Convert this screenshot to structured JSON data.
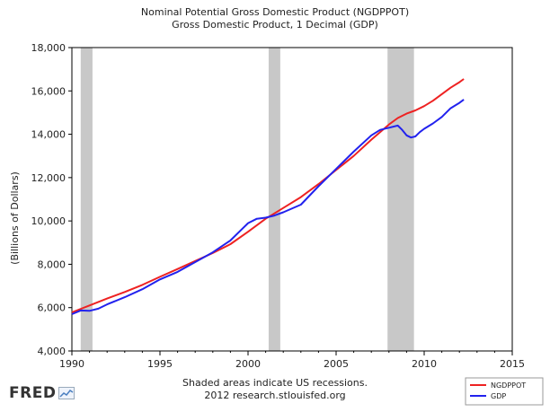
{
  "titles": {
    "line1": "Nominal Potential Gross Domestic Product (NGDPPOT)",
    "line2": "Gross Domestic Product, 1 Decimal (GDP)"
  },
  "footer": {
    "line1": "Shaded areas indicate US recessions.",
    "line2": "2012 research.stlouisfed.org"
  },
  "logo": {
    "text": "FRED"
  },
  "colors": {
    "ngdppot": "#ee2222",
    "gdp": "#2222ee",
    "recession": "#c8c8c8"
  },
  "chart_data": {
    "type": "line",
    "title": "Nominal Potential Gross Domestic Product (NGDPPOT) / Gross Domestic Product, 1 Decimal (GDP)",
    "xlabel": "",
    "ylabel": "(Billions of Dollars)",
    "xlim": [
      1990,
      2015
    ],
    "ylim": [
      4000,
      18000
    ],
    "x_ticks": [
      1990,
      1995,
      2000,
      2005,
      2010,
      2015
    ],
    "x_tick_labels": [
      "1990",
      "1995",
      "2000",
      "2005",
      "2010",
      "2015"
    ],
    "y_ticks": [
      4000,
      6000,
      8000,
      10000,
      12000,
      14000,
      16000,
      18000
    ],
    "y_tick_labels": [
      "4,000",
      "6,000",
      "8,000",
      "10,000",
      "12,000",
      "14,000",
      "16,000",
      "18,000"
    ],
    "grid": false,
    "legend_position": "bottom-right",
    "recessions": [
      [
        1990.5,
        1991.17
      ],
      [
        2001.17,
        2001.83
      ],
      [
        2007.92,
        2009.42
      ]
    ],
    "series": [
      {
        "name": "NGDPPOT",
        "color": "#ee2222",
        "x": [
          1990.0,
          1991.0,
          1992.0,
          1993.0,
          1994.0,
          1995.0,
          1996.0,
          1997.0,
          1998.0,
          1999.0,
          2000.0,
          2001.0,
          2002.0,
          2003.0,
          2004.0,
          2005.0,
          2006.0,
          2007.0,
          2008.0,
          2008.5,
          2009.0,
          2009.5,
          2010.0,
          2010.5,
          2011.0,
          2011.5,
          2012.0,
          2012.25
        ],
        "y": [
          5780,
          6100,
          6420,
          6720,
          7050,
          7420,
          7780,
          8150,
          8520,
          8930,
          9500,
          10100,
          10600,
          11100,
          11700,
          12350,
          13000,
          13750,
          14450,
          14750,
          14950,
          15100,
          15300,
          15550,
          15850,
          16150,
          16400,
          16550
        ]
      },
      {
        "name": "GDP",
        "color": "#2222ee",
        "x": [
          1990.0,
          1990.5,
          1991.0,
          1991.5,
          1992.0,
          1993.0,
          1994.0,
          1995.0,
          1996.0,
          1997.0,
          1998.0,
          1999.0,
          2000.0,
          2000.5,
          2001.0,
          2001.5,
          2002.0,
          2003.0,
          2004.0,
          2005.0,
          2006.0,
          2007.0,
          2007.5,
          2008.0,
          2008.5,
          2008.75,
          2009.0,
          2009.25,
          2009.5,
          2009.75,
          2010.0,
          2010.5,
          2011.0,
          2011.5,
          2012.0,
          2012.25
        ],
        "y": [
          5700,
          5870,
          5850,
          5950,
          6150,
          6480,
          6850,
          7300,
          7650,
          8100,
          8550,
          9100,
          9900,
          10100,
          10150,
          10250,
          10400,
          10750,
          11600,
          12400,
          13200,
          13950,
          14200,
          14300,
          14400,
          14200,
          13950,
          13850,
          13900,
          14100,
          14250,
          14500,
          14800,
          15200,
          15450,
          15600
        ]
      }
    ]
  }
}
